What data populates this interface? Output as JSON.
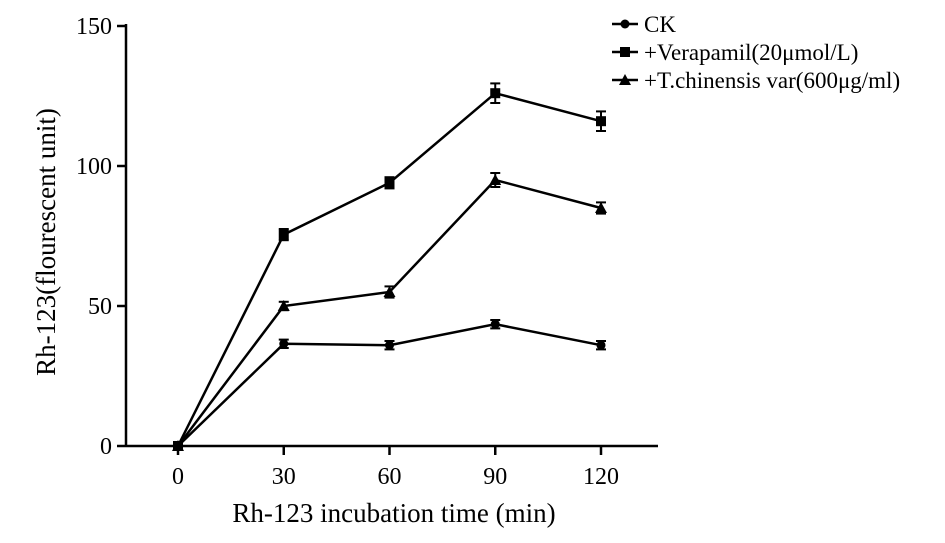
{
  "chart_data": {
    "type": "line",
    "title": "",
    "xlabel": "Rh-123 incubation time (min)",
    "ylabel": "Rh-123(flourescent unit)",
    "x": [
      0,
      30,
      60,
      90,
      120
    ],
    "xticks": [
      0,
      30,
      60,
      90,
      120
    ],
    "xtick_labels": [
      "0",
      "30",
      "60",
      "90",
      "120"
    ],
    "xlim": [
      -15,
      135
    ],
    "yticks": [
      0,
      50,
      100,
      150
    ],
    "ytick_labels": [
      "0",
      "50",
      "100",
      "150"
    ],
    "ylim": [
      0,
      150
    ],
    "grid": false,
    "legend_position": "top-right",
    "series": [
      {
        "name": "CK",
        "marker": "circle",
        "values": [
          0,
          36.5,
          36,
          43.5,
          36
        ],
        "errors": [
          0,
          1.5,
          1.5,
          1.5,
          1.5
        ]
      },
      {
        "name": "+Verapamil(20μmol/L)",
        "marker": "square",
        "values": [
          0,
          75.5,
          94,
          126,
          116
        ],
        "errors": [
          0,
          2,
          2,
          3.5,
          3.5
        ]
      },
      {
        "name": "+T.chinensis var(600μg/ml)",
        "marker": "triangle",
        "values": [
          0,
          50,
          55,
          95,
          85
        ],
        "errors": [
          0,
          1.5,
          2,
          2.5,
          2
        ]
      }
    ],
    "colors": {
      "line": "#000000",
      "background": "#ffffff"
    }
  }
}
